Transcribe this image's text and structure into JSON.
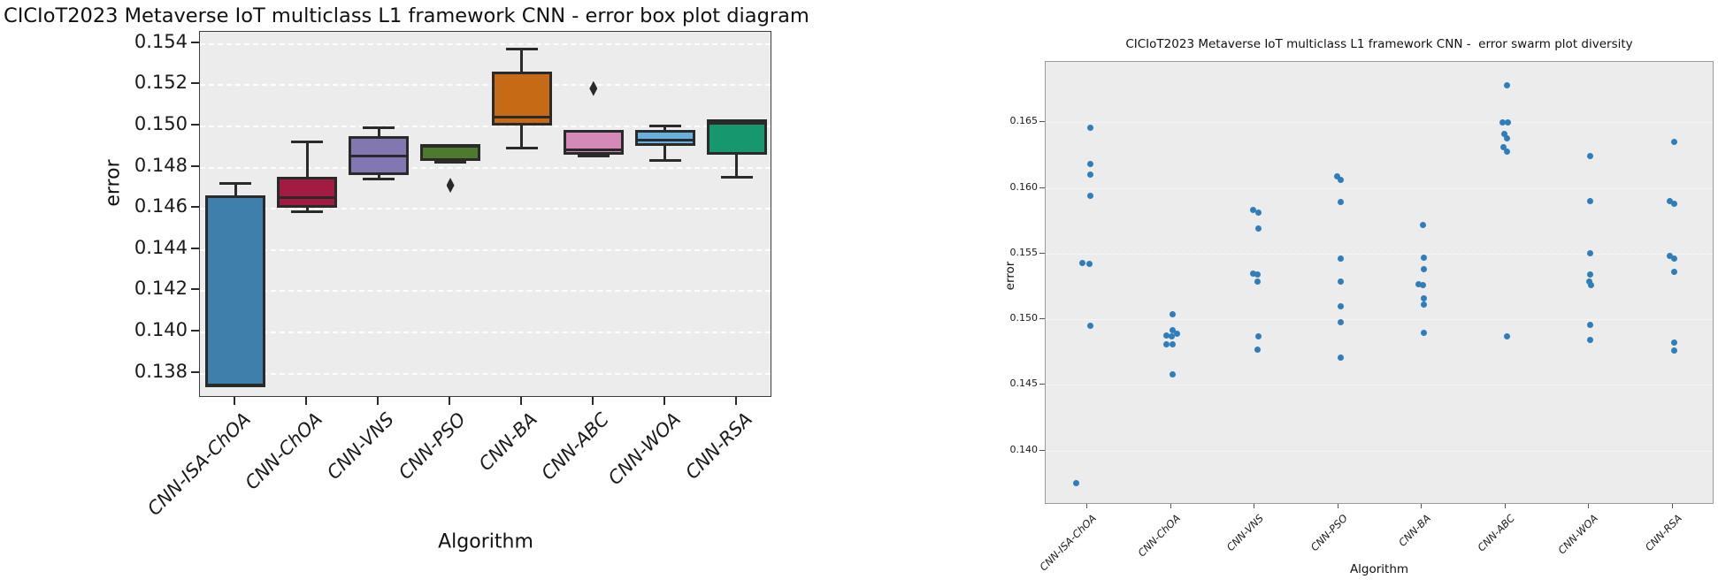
{
  "accent_colors": {
    "plot_background": "#ececec",
    "swarm_dot": "#2e7ebb",
    "box_line": "#2a2a2a"
  },
  "chart_data": [
    {
      "type": "box",
      "title": "CICIoT2023 Metaverse IoT multiclass L1 framework CNN - error box plot diagram",
      "xlabel": "Algorithm",
      "ylabel": "error",
      "categories": [
        "CNN-ISA-ChOA",
        "CNN-ChOA",
        "CNN-VNS",
        "CNN-PSO",
        "CNN-BA",
        "CNN-ABC",
        "CNN-WOA",
        "CNN-RSA"
      ],
      "yticks": [
        0.154,
        0.152,
        0.15,
        0.148,
        0.146,
        0.144,
        0.142,
        0.14,
        0.138
      ],
      "ylim": [
        0.13678,
        0.15455
      ],
      "grid": "dashed-white",
      "legend": "none",
      "boxes": [
        {
          "label": "CNN-ISA-ChOA",
          "color": "#3f7fab",
          "whislo": 0.1373,
          "q1": 0.1373,
          "med": 0.1374,
          "q3": 0.1466,
          "whishi": 0.1472,
          "outliers": []
        },
        {
          "label": "CNN-ChOA",
          "color": "#a21c41",
          "whislo": 0.1458,
          "q1": 0.146,
          "med": 0.1465,
          "q3": 0.1475,
          "whishi": 0.1492,
          "outliers": []
        },
        {
          "label": "CNN-VNS",
          "color": "#8377b2",
          "whislo": 0.1474,
          "q1": 0.1476,
          "med": 0.1485,
          "q3": 0.1495,
          "whishi": 0.1499,
          "outliers": []
        },
        {
          "label": "CNN-PSO",
          "color": "#4d7a2d",
          "whislo": 0.1482,
          "q1": 0.1483,
          "med": 0.149,
          "q3": 0.1491,
          "whishi": 0.1491,
          "outliers": [
            0.1471
          ]
        },
        {
          "label": "CNN-BA",
          "color": "#c66a15",
          "whislo": 0.1489,
          "q1": 0.15,
          "med": 0.1504,
          "q3": 0.1526,
          "whishi": 0.1537,
          "outliers": []
        },
        {
          "label": "CNN-ABC",
          "color": "#d489b9",
          "whislo": 0.1485,
          "q1": 0.1486,
          "med": 0.1488,
          "q3": 0.1498,
          "whishi": 0.1498,
          "outliers": [
            0.1518
          ]
        },
        {
          "label": "CNN-WOA",
          "color": "#67b1df",
          "whislo": 0.1483,
          "q1": 0.149,
          "med": 0.1493,
          "q3": 0.1498,
          "whishi": 0.15,
          "outliers": []
        },
        {
          "label": "CNN-RSA",
          "color": "#17976e",
          "whislo": 0.1475,
          "q1": 0.1486,
          "med": 0.1501,
          "q3": 0.1503,
          "whishi": 0.1503,
          "outliers": []
        }
      ]
    },
    {
      "type": "scatter",
      "subtype": "swarm",
      "title": "CICIoT2023 Metaverse IoT multiclass L1 framework CNN -  error swarm plot diversity",
      "xlabel": "Algorithm",
      "ylabel": "error",
      "categories": [
        "CNN-ISA-ChOA",
        "CNN-ChOA",
        "CNN-VNS",
        "CNN-PSO",
        "CNN-BA",
        "CNN-ABC",
        "CNN-WOA",
        "CNN-RSA"
      ],
      "yticks": [
        0.165,
        0.16,
        0.155,
        0.15,
        0.145,
        0.14
      ],
      "ylim": [
        0.13588,
        0.1696
      ],
      "grid": "dotted-white",
      "dot_color": "#2e7ebb",
      "series": [
        {
          "label": "CNN-ISA-ChOA",
          "points": [
            [
              0.1646,
              3
            ],
            [
              0.1618,
              3
            ],
            [
              0.161,
              3
            ],
            [
              0.1594,
              3
            ],
            [
              0.1543,
              -6
            ],
            [
              0.1542,
              2
            ],
            [
              0.1495,
              3
            ],
            [
              0.1375,
              -13
            ]
          ]
        },
        {
          "label": "CNN-ChOA",
          "points": [
            [
              0.1504,
              2
            ],
            [
              0.1492,
              2
            ],
            [
              0.1489,
              7
            ],
            [
              0.1488,
              -5
            ],
            [
              0.1487,
              1
            ],
            [
              0.1481,
              -5
            ],
            [
              0.1481,
              2
            ],
            [
              0.1458,
              2
            ]
          ]
        },
        {
          "label": "CNN-VNS",
          "points": [
            [
              0.1583,
              -2
            ],
            [
              0.1581,
              4
            ],
            [
              0.1569,
              4
            ],
            [
              0.1535,
              -2
            ],
            [
              0.1534,
              3
            ],
            [
              0.1529,
              3
            ],
            [
              0.1487,
              4
            ],
            [
              0.1477,
              3
            ]
          ]
        },
        {
          "label": "CNN-PSO",
          "points": [
            [
              0.1609,
              -1
            ],
            [
              0.1606,
              3
            ],
            [
              0.1589,
              3
            ],
            [
              0.1546,
              3
            ],
            [
              0.1529,
              3
            ],
            [
              0.151,
              3
            ],
            [
              0.1498,
              3
            ],
            [
              0.1471,
              3
            ]
          ]
        },
        {
          "label": "CNN-BA",
          "points": [
            [
              0.1572,
              1
            ],
            [
              0.1547,
              2
            ],
            [
              0.1538,
              2
            ],
            [
              0.1527,
              -4
            ],
            [
              0.1526,
              1
            ],
            [
              0.1516,
              2
            ],
            [
              0.1511,
              2
            ],
            [
              0.149,
              2
            ]
          ]
        },
        {
          "label": "CNN-ABC",
          "points": [
            [
              0.1678,
              2
            ],
            [
              0.165,
              -3
            ],
            [
              0.165,
              3
            ],
            [
              0.1641,
              -1
            ],
            [
              0.1638,
              2
            ],
            [
              0.1631,
              -2
            ],
            [
              0.1628,
              2
            ],
            [
              0.1487,
              2
            ]
          ]
        },
        {
          "label": "CNN-WOA",
          "points": [
            [
              0.1624,
              1
            ],
            [
              0.159,
              1
            ],
            [
              0.155,
              1
            ],
            [
              0.1534,
              1
            ],
            [
              0.1529,
              0
            ],
            [
              0.1526,
              2
            ],
            [
              0.1496,
              1
            ],
            [
              0.1484,
              1
            ]
          ]
        },
        {
          "label": "CNN-RSA",
          "points": [
            [
              0.1635,
              2
            ],
            [
              0.159,
              -3
            ],
            [
              0.1588,
              2
            ],
            [
              0.1548,
              -3
            ],
            [
              0.1546,
              2
            ],
            [
              0.1536,
              2
            ],
            [
              0.1482,
              2
            ],
            [
              0.1476,
              2
            ]
          ]
        }
      ]
    }
  ]
}
